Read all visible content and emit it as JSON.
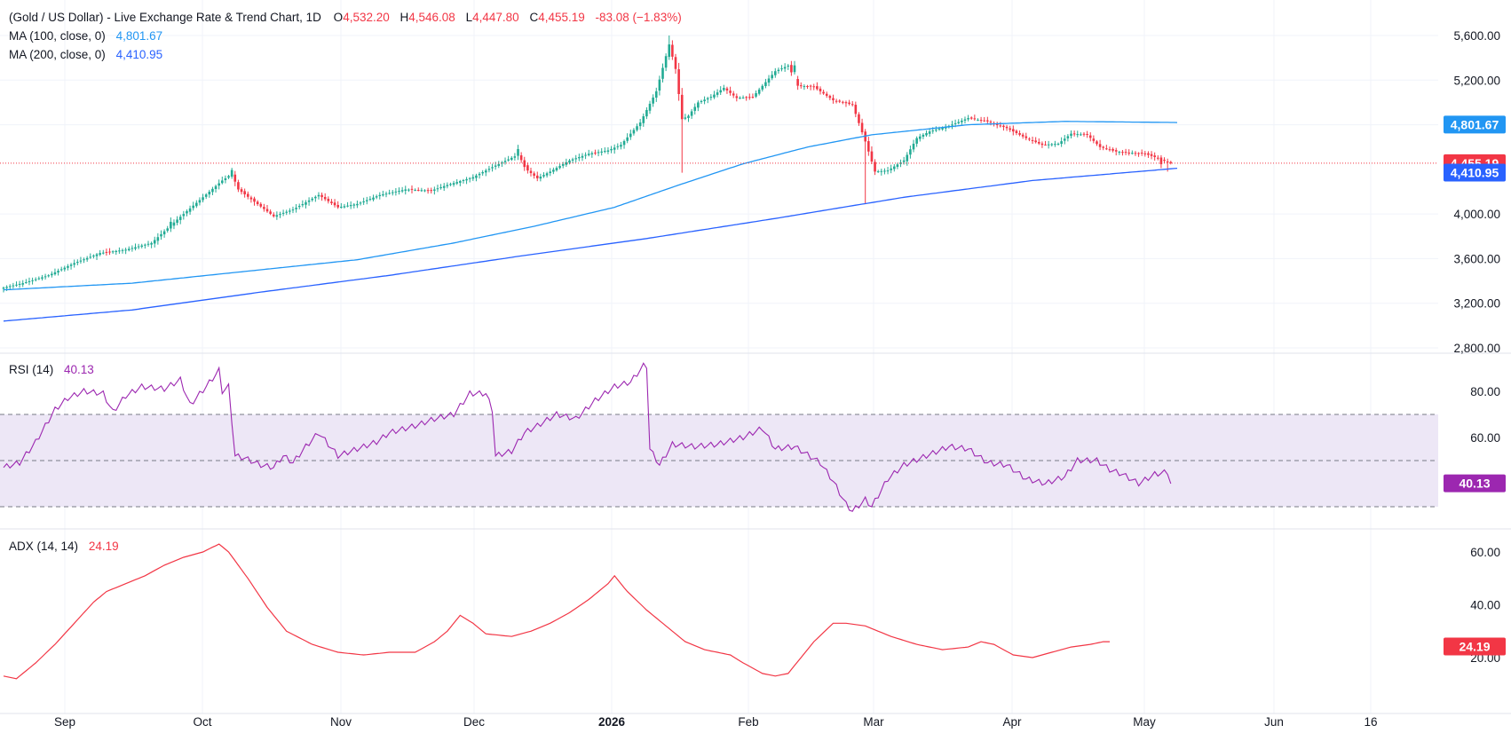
{
  "header": {
    "title": "(Gold / US Dollar) - Live Exchange Rate & Trend Chart, 1D",
    "o_key": "O",
    "o_val": "4,532.20",
    "h_key": "H",
    "h_val": "4,546.08",
    "l_key": "L",
    "l_val": "4,447.80",
    "c_key": "C",
    "c_val": "4,455.19",
    "change": "-83.08 (−1.83%)"
  },
  "indicators": {
    "ma100_label": "MA (100, close, 0)",
    "ma100_value": "4,801.67",
    "ma200_label": "MA (200, close, 0)",
    "ma200_value": "4,410.95",
    "rsi_label": "RSI (14)",
    "rsi_value": "40.13",
    "adx_label": "ADX (14, 14)",
    "adx_value": "24.19"
  },
  "colors": {
    "up": "#22ab94",
    "down": "#f23645",
    "ma100": "#2196f3",
    "ma200": "#2962ff",
    "rsi": "#9c27b0",
    "rsi_band": "#ede7f6",
    "adx": "#f23645",
    "grid": "#f0f3fa"
  },
  "chart_data": [
    {
      "type": "candlestick",
      "title": "(Gold / US Dollar) - Live Exchange Rate & Trend Chart, 1D",
      "x_tick_labels": [
        "Sep",
        "Oct",
        "Nov",
        "Dec",
        "2026",
        "Feb",
        "Mar",
        "Apr",
        "May",
        "Jun",
        "16"
      ],
      "y_tick_labels": [
        "5,600.00",
        "5,200.00",
        "4,800.00",
        "4,000.00",
        "3,600.00",
        "3,200.00",
        "2,800.00"
      ],
      "ylim": [
        2800,
        5640
      ],
      "last_price": 4455.19,
      "anchors": [
        [
          0,
          3340
        ],
        [
          6,
          3380
        ],
        [
          14,
          3450
        ],
        [
          22,
          3560
        ],
        [
          30,
          3650
        ],
        [
          38,
          3680
        ],
        [
          46,
          3740
        ],
        [
          54,
          3950
        ],
        [
          62,
          4150
        ],
        [
          68,
          4300
        ],
        [
          71,
          4360
        ],
        [
          73,
          4220
        ],
        [
          78,
          4110
        ],
        [
          84,
          3980
        ],
        [
          90,
          4040
        ],
        [
          98,
          4170
        ],
        [
          104,
          4060
        ],
        [
          110,
          4090
        ],
        [
          117,
          4170
        ],
        [
          125,
          4220
        ],
        [
          133,
          4210
        ],
        [
          138,
          4260
        ],
        [
          146,
          4330
        ],
        [
          152,
          4420
        ],
        [
          157,
          4490
        ],
        [
          160,
          4530
        ],
        [
          163,
          4390
        ],
        [
          166,
          4320
        ],
        [
          170,
          4380
        ],
        [
          176,
          4480
        ],
        [
          182,
          4540
        ],
        [
          188,
          4570
        ],
        [
          192,
          4620
        ],
        [
          198,
          4820
        ],
        [
          203,
          5100
        ],
        [
          207,
          5520
        ],
        [
          209,
          5300
        ],
        [
          211,
          4850
        ],
        [
          213,
          4880
        ],
        [
          216,
          5000
        ],
        [
          220,
          5050
        ],
        [
          224,
          5130
        ],
        [
          228,
          5040
        ],
        [
          233,
          5050
        ],
        [
          240,
          5280
        ],
        [
          244,
          5330
        ],
        [
          247,
          5150
        ],
        [
          252,
          5140
        ],
        [
          258,
          5020
        ],
        [
          264,
          4980
        ],
        [
          268,
          4650
        ],
        [
          271,
          4380
        ],
        [
          275,
          4390
        ],
        [
          280,
          4480
        ],
        [
          284,
          4680
        ],
        [
          288,
          4740
        ],
        [
          294,
          4790
        ],
        [
          300,
          4860
        ],
        [
          306,
          4830
        ],
        [
          312,
          4770
        ],
        [
          318,
          4680
        ],
        [
          323,
          4620
        ],
        [
          328,
          4630
        ],
        [
          332,
          4720
        ],
        [
          337,
          4710
        ],
        [
          341,
          4600
        ],
        [
          346,
          4560
        ],
        [
          350,
          4550
        ],
        [
          355,
          4540
        ],
        [
          359,
          4500
        ],
        [
          363,
          4455
        ]
      ],
      "events": [
        [
          52,
          "up"
        ],
        [
          71,
          "up"
        ],
        [
          72,
          "down"
        ],
        [
          160,
          "up"
        ],
        [
          162,
          "down"
        ],
        [
          207,
          "up"
        ],
        [
          208,
          "down"
        ],
        [
          211,
          "down"
        ],
        [
          246,
          "up"
        ],
        [
          247,
          "down"
        ],
        [
          268,
          "down"
        ],
        [
          271,
          "down"
        ],
        [
          360,
          "down"
        ]
      ],
      "series": [
        {
          "name": "MA (100, close, 0)",
          "last": 4801.67,
          "points": [
            [
              0,
              3320
            ],
            [
              40,
              3380
            ],
            [
              80,
              3500
            ],
            [
              110,
              3590
            ],
            [
              140,
              3740
            ],
            [
              165,
              3890
            ],
            [
              190,
              4060
            ],
            [
              210,
              4260
            ],
            [
              230,
              4450
            ],
            [
              250,
              4600
            ],
            [
              270,
              4710
            ],
            [
              300,
              4800
            ],
            [
              330,
              4830
            ],
            [
              365,
              4820
            ]
          ]
        },
        {
          "name": "MA (200, close, 0)",
          "last": 4410.95,
          "points": [
            [
              0,
              3040
            ],
            [
              40,
              3140
            ],
            [
              80,
              3300
            ],
            [
              120,
              3450
            ],
            [
              160,
              3620
            ],
            [
              200,
              3780
            ],
            [
              240,
              3960
            ],
            [
              280,
              4150
            ],
            [
              320,
              4300
            ],
            [
              365,
              4410
            ]
          ]
        }
      ],
      "price_labels": [
        4801.67,
        4455.19,
        4410.95
      ]
    },
    {
      "type": "line",
      "title": "RSI (14)",
      "y_tick_labels": [
        "80.00",
        "60.00"
      ],
      "ylim": [
        20,
        91
      ],
      "band": [
        30,
        70
      ],
      "midline": 50,
      "last": 40.13,
      "anchors": [
        [
          0,
          47
        ],
        [
          5,
          49
        ],
        [
          10,
          58
        ],
        [
          16,
          72
        ],
        [
          20,
          77
        ],
        [
          25,
          80
        ],
        [
          31,
          79
        ],
        [
          34,
          71
        ],
        [
          38,
          78
        ],
        [
          43,
          82
        ],
        [
          50,
          81
        ],
        [
          55,
          85
        ],
        [
          58,
          74
        ],
        [
          63,
          82
        ],
        [
          67,
          89
        ],
        [
          68,
          80
        ],
        [
          70,
          82
        ],
        [
          72,
          52
        ],
        [
          75,
          51
        ],
        [
          80,
          48
        ],
        [
          84,
          47
        ],
        [
          87,
          52
        ],
        [
          90,
          49
        ],
        [
          94,
          56
        ],
        [
          98,
          62
        ],
        [
          104,
          52
        ],
        [
          110,
          55
        ],
        [
          116,
          58
        ],
        [
          120,
          62
        ],
        [
          128,
          65
        ],
        [
          134,
          68
        ],
        [
          140,
          70
        ],
        [
          145,
          79
        ],
        [
          150,
          79
        ],
        [
          152,
          72
        ],
        [
          153,
          52
        ],
        [
          158,
          54
        ],
        [
          162,
          62
        ],
        [
          166,
          65
        ],
        [
          172,
          70
        ],
        [
          178,
          68
        ],
        [
          184,
          76
        ],
        [
          190,
          82
        ],
        [
          195,
          84
        ],
        [
          199,
          91
        ],
        [
          200,
          91
        ],
        [
          201,
          55
        ],
        [
          204,
          48
        ],
        [
          208,
          57
        ],
        [
          215,
          56
        ],
        [
          222,
          57
        ],
        [
          230,
          60
        ],
        [
          236,
          64
        ],
        [
          240,
          55
        ],
        [
          246,
          56
        ],
        [
          254,
          49
        ],
        [
          258,
          41
        ],
        [
          262,
          31
        ],
        [
          264,
          28
        ],
        [
          268,
          33
        ],
        [
          270,
          30
        ],
        [
          275,
          42
        ],
        [
          280,
          48
        ],
        [
          287,
          52
        ],
        [
          294,
          56
        ],
        [
          300,
          55
        ],
        [
          306,
          49
        ],
        [
          312,
          48
        ],
        [
          318,
          42
        ],
        [
          324,
          40
        ],
        [
          330,
          43
        ],
        [
          334,
          50
        ],
        [
          340,
          50
        ],
        [
          344,
          46
        ],
        [
          348,
          44
        ],
        [
          353,
          40
        ],
        [
          358,
          44
        ],
        [
          362,
          45
        ],
        [
          363,
          40
        ]
      ]
    },
    {
      "type": "line",
      "title": "ADX (14, 14)",
      "y_tick_labels": [
        "60.00",
        "40.00",
        "20.00"
      ],
      "ylim": [
        4,
        68
      ],
      "last": 24.19,
      "anchors": [
        [
          0,
          13
        ],
        [
          4,
          12
        ],
        [
          10,
          18
        ],
        [
          16,
          25
        ],
        [
          22,
          33
        ],
        [
          28,
          41
        ],
        [
          32,
          45
        ],
        [
          38,
          48
        ],
        [
          44,
          51
        ],
        [
          50,
          55
        ],
        [
          56,
          58
        ],
        [
          62,
          60
        ],
        [
          67,
          63
        ],
        [
          70,
          60
        ],
        [
          76,
          50
        ],
        [
          82,
          39
        ],
        [
          88,
          30
        ],
        [
          96,
          25
        ],
        [
          104,
          22
        ],
        [
          112,
          21
        ],
        [
          120,
          22
        ],
        [
          128,
          22
        ],
        [
          134,
          26
        ],
        [
          138,
          30
        ],
        [
          142,
          36
        ],
        [
          146,
          33
        ],
        [
          150,
          29
        ],
        [
          158,
          28
        ],
        [
          164,
          30
        ],
        [
          170,
          33
        ],
        [
          176,
          37
        ],
        [
          182,
          42
        ],
        [
          188,
          48
        ],
        [
          190,
          51
        ],
        [
          194,
          45
        ],
        [
          200,
          38
        ],
        [
          206,
          32
        ],
        [
          212,
          26
        ],
        [
          218,
          23
        ],
        [
          226,
          21
        ],
        [
          230,
          18
        ],
        [
          236,
          14
        ],
        [
          240,
          13
        ],
        [
          244,
          14
        ],
        [
          248,
          20
        ],
        [
          252,
          26
        ],
        [
          258,
          33
        ],
        [
          262,
          33
        ],
        [
          268,
          32
        ],
        [
          276,
          28
        ],
        [
          284,
          25
        ],
        [
          292,
          23
        ],
        [
          300,
          24
        ],
        [
          304,
          26
        ],
        [
          308,
          25
        ],
        [
          314,
          21
        ],
        [
          320,
          20
        ],
        [
          326,
          22
        ],
        [
          332,
          24
        ],
        [
          338,
          25
        ],
        [
          342,
          26
        ],
        [
          344,
          26
        ]
      ]
    }
  ]
}
